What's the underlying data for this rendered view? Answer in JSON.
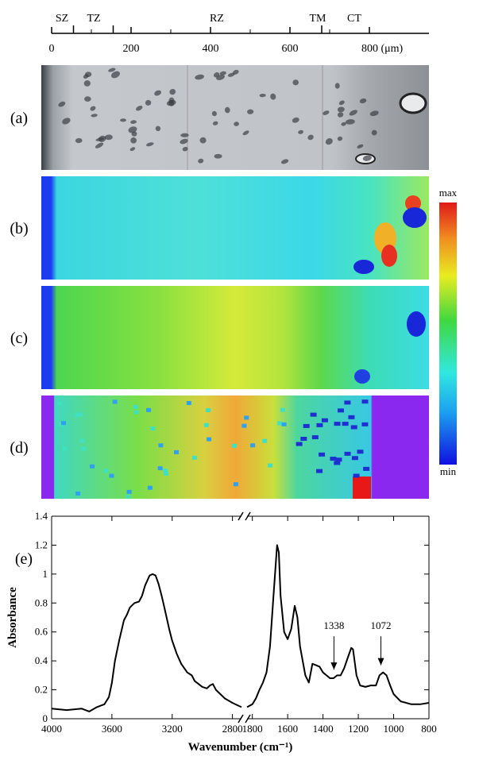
{
  "scale_bar": {
    "xlim": [
      0,
      950
    ],
    "xticks": [
      0,
      200,
      400,
      600,
      {
        "value": 800,
        "label": "800 (μm)"
      }
    ],
    "minor_ticks": [
      100,
      300,
      500,
      700
    ],
    "boundaries": [
      55,
      155,
      680
    ],
    "zones": [
      "SZ",
      "TZ",
      "RZ",
      "TM",
      "CT"
    ]
  },
  "panels": {
    "labels": [
      "(a)",
      "(b)",
      "(c)",
      "(d)"
    ]
  },
  "colorbar": {
    "max_label": "max",
    "min_label": "min"
  },
  "chart_data": {
    "type": "line",
    "panel_label": "(e)",
    "x_label": "Wavenumber (cm⁻¹)",
    "y_label": "Absorbance",
    "color": "#000000",
    "x": [
      4000,
      3900,
      3800,
      3750,
      3700,
      3650,
      3620,
      3600,
      3580,
      3550,
      3520,
      3500,
      3480,
      3450,
      3420,
      3400,
      3380,
      3350,
      3330,
      3310,
      3290,
      3270,
      3250,
      3220,
      3200,
      3170,
      3140,
      3100,
      3070,
      3050,
      3000,
      2970,
      2950,
      2930,
      2910,
      2880,
      2850,
      2800,
      2760,
      2740,
      1830,
      1800,
      1780,
      1760,
      1740,
      1720,
      1700,
      1680,
      1660,
      1650,
      1640,
      1620,
      1600,
      1580,
      1560,
      1545,
      1530,
      1500,
      1480,
      1460,
      1440,
      1420,
      1400,
      1380,
      1360,
      1340,
      1320,
      1300,
      1280,
      1260,
      1240,
      1230,
      1210,
      1190,
      1160,
      1130,
      1100,
      1080,
      1060,
      1040,
      1020,
      1000,
      960,
      900,
      850,
      800
    ],
    "values": [
      0.07,
      0.06,
      0.07,
      0.05,
      0.08,
      0.1,
      0.15,
      0.25,
      0.4,
      0.55,
      0.68,
      0.72,
      0.77,
      0.8,
      0.81,
      0.85,
      0.92,
      0.99,
      1.0,
      0.99,
      0.93,
      0.85,
      0.76,
      0.62,
      0.54,
      0.45,
      0.38,
      0.32,
      0.3,
      0.26,
      0.22,
      0.21,
      0.23,
      0.24,
      0.2,
      0.17,
      0.14,
      0.11,
      0.09,
      0.08,
      0.08,
      0.1,
      0.14,
      0.2,
      0.25,
      0.32,
      0.5,
      0.85,
      1.2,
      1.15,
      0.85,
      0.6,
      0.55,
      0.62,
      0.78,
      0.7,
      0.5,
      0.3,
      0.25,
      0.38,
      0.37,
      0.36,
      0.32,
      0.3,
      0.28,
      0.28,
      0.3,
      0.3,
      0.35,
      0.42,
      0.49,
      0.48,
      0.3,
      0.23,
      0.22,
      0.23,
      0.23,
      0.3,
      0.32,
      0.3,
      0.23,
      0.17,
      0.12,
      0.1,
      0.1,
      0.11
    ],
    "xlim": [
      4000,
      800
    ],
    "x_break": [
      2740,
      1830
    ],
    "xticks": [
      4000,
      3600,
      3200,
      2800,
      1800,
      1600,
      1400,
      1200,
      1000,
      800
    ],
    "ylim": [
      0,
      1.4
    ],
    "yticks": [
      0,
      0.2,
      0.4,
      0.6,
      0.8,
      1,
      1.2,
      1.4
    ],
    "annotations": [
      {
        "text": "1338",
        "x": 1338,
        "y": 0.3
      },
      {
        "text": "1072",
        "x": 1072,
        "y": 0.33
      }
    ]
  }
}
